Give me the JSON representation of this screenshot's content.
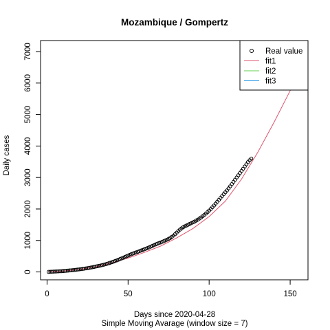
{
  "chart_data": {
    "type": "scatter",
    "title": "Mozambique / Gompertz",
    "xlabel": "Days since 2020-04-28",
    "subtitle": "Simple Moving Avarage (window size = 7)",
    "ylabel": "Daily cases",
    "xlim": [
      -4,
      161
    ],
    "ylim": [
      -250,
      7350
    ],
    "xticks": [
      0,
      50,
      100,
      150
    ],
    "yticks": [
      0,
      1000,
      2000,
      3000,
      4000,
      5000,
      6000,
      7000
    ],
    "legend": {
      "position": "top-right",
      "entries": [
        {
          "label": "Real value",
          "symbol": "circle",
          "color": "#000000"
        },
        {
          "label": "fit1",
          "symbol": "line",
          "color": "#DF536B"
        },
        {
          "label": "fit2",
          "symbol": "line",
          "color": "#61D04F"
        },
        {
          "label": "fit3",
          "symbol": "line",
          "color": "#2297E6"
        }
      ]
    },
    "series": [
      {
        "name": "Real value",
        "kind": "points",
        "color": "#000000",
        "x": [
          1,
          2,
          3,
          4,
          5,
          6,
          7,
          8,
          9,
          10,
          11,
          12,
          13,
          14,
          15,
          16,
          17,
          18,
          19,
          20,
          21,
          22,
          23,
          24,
          25,
          26,
          27,
          28,
          29,
          30,
          31,
          32,
          33,
          34,
          35,
          36,
          37,
          38,
          39,
          40,
          41,
          42,
          43,
          44,
          45,
          46,
          47,
          48,
          49,
          50,
          51,
          52,
          53,
          54,
          55,
          56,
          57,
          58,
          59,
          60,
          61,
          62,
          63,
          64,
          65,
          66,
          67,
          68,
          69,
          70,
          71,
          72,
          73,
          74,
          75,
          76,
          77,
          78,
          79,
          80,
          81,
          82,
          83,
          84,
          85,
          86,
          87,
          88,
          89,
          90,
          91,
          92,
          93,
          94,
          95,
          96,
          97,
          98,
          99,
          100,
          101,
          102,
          103,
          104,
          105,
          106,
          107,
          108,
          109,
          110,
          111,
          112,
          113,
          114,
          115,
          116,
          117,
          118,
          119,
          120,
          121,
          122,
          123,
          124,
          125,
          126
        ],
        "y": [
          2,
          5,
          8,
          10,
          13,
          16,
          19,
          22,
          25,
          29,
          33,
          38,
          43,
          48,
          53,
          58,
          64,
          70,
          76,
          83,
          90,
          97,
          105,
          113,
          121,
          130,
          140,
          150,
          160,
          171,
          182,
          193,
          205,
          217,
          230,
          244,
          259,
          275,
          292,
          310,
          328,
          347,
          367,
          388,
          409,
          430,
          452,
          474,
          497,
          520,
          543,
          565,
          585,
          604,
          622,
          640,
          660,
          680,
          700,
          720,
          740,
          760,
          782,
          805,
          828,
          852,
          875,
          897,
          917,
          935,
          955,
          977,
          1000,
          1025,
          1050,
          1080,
          1115,
          1155,
          1200,
          1250,
          1300,
          1345,
          1385,
          1420,
          1450,
          1475,
          1500,
          1525,
          1550,
          1575,
          1600,
          1630,
          1660,
          1695,
          1730,
          1770,
          1810,
          1855,
          1900,
          1950,
          2000,
          2055,
          2110,
          2170,
          2230,
          2290,
          2350,
          2410,
          2470,
          2530,
          2590,
          2655,
          2720,
          2790,
          2860,
          2930,
          3000,
          3070,
          3140,
          3210,
          3280,
          3350,
          3420,
          3490,
          3550,
          3600
        ]
      },
      {
        "name": "fit1",
        "kind": "line",
        "color": "#DF536B",
        "x": [
          1,
          10,
          20,
          30,
          40,
          50,
          60,
          70,
          80,
          90,
          100,
          110,
          120,
          130,
          140,
          150,
          156
        ],
        "y": [
          12,
          30,
          80,
          165,
          290,
          440,
          620,
          820,
          1080,
          1380,
          1760,
          2250,
          2950,
          3800,
          4750,
          5760,
          6380
        ]
      }
    ]
  }
}
